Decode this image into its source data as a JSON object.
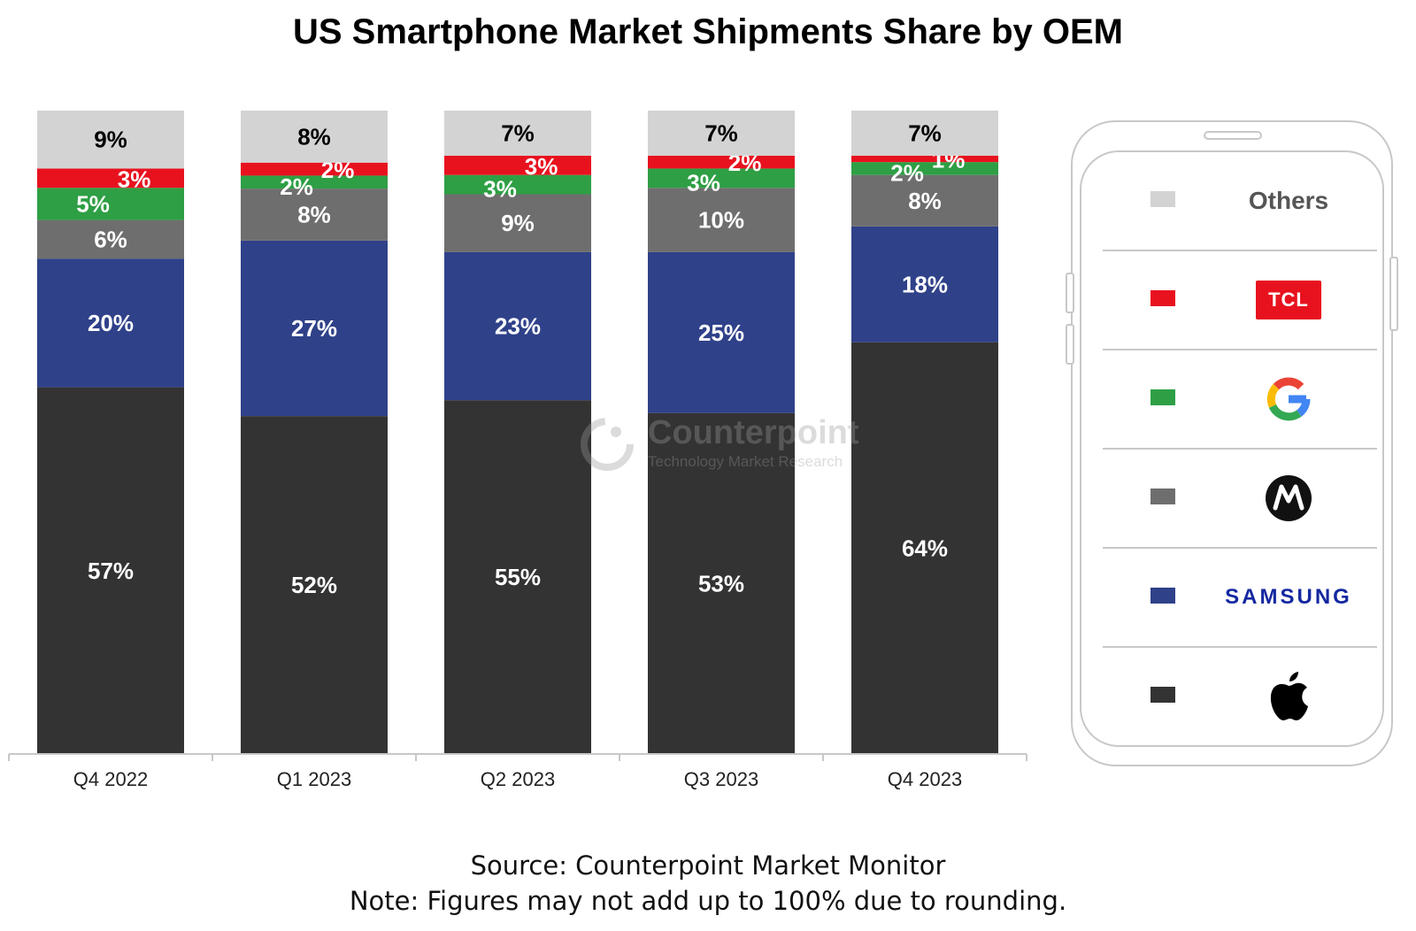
{
  "chart_data": {
    "type": "bar",
    "stacked": true,
    "title": "US Smartphone Market Shipments Share by OEM",
    "categories": [
      "Q4 2022",
      "Q1 2023",
      "Q2 2023",
      "Q3 2023",
      "Q4 2023"
    ],
    "series": [
      {
        "name": "Apple",
        "color": "#333333",
        "label_color": "#ffffff",
        "values": [
          57,
          52,
          55,
          53,
          64
        ],
        "labels": [
          "57%",
          "52%",
          "55%",
          "53%",
          "64%"
        ]
      },
      {
        "name": "Samsung",
        "color": "#2f4189",
        "label_color": "#ffffff",
        "values": [
          20,
          27,
          23,
          25,
          18
        ],
        "labels": [
          "20%",
          "27%",
          "23%",
          "25%",
          "18%"
        ]
      },
      {
        "name": "Motorola",
        "color": "#6e6e6e",
        "label_color": "#ffffff",
        "values": [
          6,
          8,
          9,
          10,
          8
        ],
        "labels": [
          "6%",
          "8%",
          "9%",
          "10%",
          "8%"
        ]
      },
      {
        "name": "Google",
        "color": "#2e9f44",
        "label_color": "#ffffff",
        "values": [
          5,
          2,
          3,
          3,
          2
        ],
        "labels": [
          "5%",
          "2%",
          "3%",
          "3%",
          "2%"
        ]
      },
      {
        "name": "TCL",
        "color": "#e8121f",
        "label_color": "#ffffff",
        "values": [
          3,
          2,
          3,
          2,
          1
        ],
        "labels": [
          "3%",
          "2%",
          "3%",
          "2%",
          "1%"
        ]
      },
      {
        "name": "Others",
        "color": "#d3d3d3",
        "label_color": "#000000",
        "values": [
          9,
          8,
          7,
          7,
          7
        ],
        "labels": [
          "9%",
          "8%",
          "7%",
          "7%",
          "7%"
        ]
      }
    ],
    "ylim": [
      0,
      100
    ],
    "xlabel": "",
    "ylabel": "",
    "grid": false,
    "legend_position": "right"
  },
  "legend": {
    "others_label": "Others",
    "tcl_logo_text": "TCL",
    "samsung_logo_text": "SAMSUNG"
  },
  "watermark": {
    "name": "Counterpoint",
    "tagline": "Technology Market Research"
  },
  "footer": {
    "source": "Source: Counterpoint Market Monitor",
    "note": "Note: Figures may not add up to 100% due to rounding."
  }
}
